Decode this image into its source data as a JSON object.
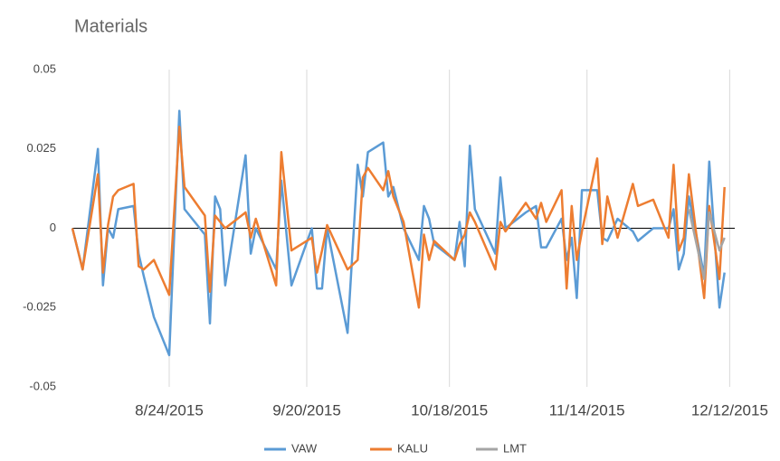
{
  "chart_data": {
    "type": "line",
    "title": "Materials",
    "x": [
      "2015-08-05",
      "2015-08-07",
      "2015-08-10",
      "2015-08-11",
      "2015-08-12",
      "2015-08-13",
      "2015-08-14",
      "2015-08-17",
      "2015-08-18",
      "2015-08-19",
      "2015-08-21",
      "2015-08-24",
      "2015-08-26",
      "2015-08-27",
      "2015-08-31",
      "2015-09-01",
      "2015-09-02",
      "2015-09-03",
      "2015-09-04",
      "2015-09-08",
      "2015-09-09",
      "2015-09-10",
      "2015-09-14",
      "2015-09-15",
      "2015-09-17",
      "2015-09-21",
      "2015-09-22",
      "2015-09-23",
      "2015-09-24",
      "2015-09-28",
      "2015-09-30",
      "2015-10-01",
      "2015-10-02",
      "2015-10-05",
      "2015-10-06",
      "2015-10-07",
      "2015-10-09",
      "2015-10-12",
      "2015-10-13",
      "2015-10-14",
      "2015-10-15",
      "2015-10-19",
      "2015-10-20",
      "2015-10-21",
      "2015-10-22",
      "2015-10-23",
      "2015-10-27",
      "2015-10-28",
      "2015-10-29",
      "2015-11-02",
      "2015-11-04",
      "2015-11-05",
      "2015-11-06",
      "2015-11-09",
      "2015-11-10",
      "2015-11-11",
      "2015-11-12",
      "2015-11-13",
      "2015-11-16",
      "2015-11-17",
      "2015-11-18",
      "2015-11-20",
      "2015-11-23",
      "2015-11-24",
      "2015-11-27",
      "2015-11-30",
      "2015-12-01",
      "2015-12-02",
      "2015-12-03",
      "2015-12-04",
      "2015-12-07",
      "2015-12-08",
      "2015-12-10",
      "2015-12-11"
    ],
    "series": [
      {
        "name": "VAW",
        "color": "#5b9bd5",
        "values": [
          0,
          -0.013,
          0.025,
          -0.018,
          0,
          -0.003,
          0.006,
          0.007,
          -0.008,
          -0.015,
          -0.028,
          -0.04,
          0.037,
          0.006,
          -0.002,
          -0.03,
          0.01,
          0.006,
          -0.018,
          0.023,
          -0.008,
          0,
          -0.013,
          0.015,
          -0.018,
          0,
          -0.019,
          -0.019,
          0,
          -0.033,
          0.02,
          0.01,
          0.024,
          0.027,
          0.01,
          0.013,
          0,
          -0.01,
          0.007,
          0.003,
          -0.005,
          -0.01,
          0.002,
          -0.012,
          0.026,
          0.006,
          -0.008,
          0.016,
          0,
          0.005,
          0.007,
          -0.006,
          -0.006,
          0.003,
          -0.01,
          -0.003,
          -0.022,
          0.012,
          0.012,
          -0.003,
          -0.004,
          0.003,
          -0.001,
          -0.004,
          0,
          0,
          0.006,
          -0.013,
          -0.008,
          0.01,
          -0.015,
          0.021,
          -0.025,
          -0.014
        ]
      },
      {
        "name": "KALU",
        "color": "#ed7d31",
        "values": [
          0,
          -0.013,
          0.017,
          -0.014,
          0.001,
          0.01,
          0.012,
          0.014,
          -0.012,
          -0.013,
          -0.01,
          -0.021,
          0.032,
          0.013,
          0.004,
          -0.02,
          0.004,
          0.002,
          0,
          0.005,
          -0.003,
          0.003,
          -0.018,
          0.024,
          -0.007,
          -0.003,
          -0.014,
          -0.007,
          0.001,
          -0.013,
          -0.01,
          0.016,
          0.019,
          0.012,
          0.018,
          0.01,
          0.002,
          -0.025,
          -0.002,
          -0.01,
          -0.004,
          -0.01,
          -0.005,
          -0.002,
          0.005,
          0.002,
          -0.013,
          0.002,
          -0.001,
          0.008,
          0.003,
          0.008,
          0.002,
          0.012,
          -0.019,
          0.007,
          -0.01,
          -0.001,
          0.022,
          -0.005,
          0.01,
          -0.003,
          0.014,
          0.007,
          0.009,
          -0.003,
          0.02,
          -0.007,
          -0.003,
          0.017,
          -0.022,
          0.007,
          -0.016,
          0.013
        ]
      },
      {
        "name": "LMT",
        "color": "#a5a5a5",
        "values": [
          null,
          null,
          null,
          null,
          null,
          null,
          null,
          null,
          null,
          null,
          null,
          null,
          null,
          null,
          null,
          null,
          null,
          null,
          null,
          null,
          null,
          null,
          null,
          null,
          null,
          null,
          null,
          null,
          null,
          null,
          null,
          null,
          null,
          null,
          null,
          null,
          null,
          null,
          null,
          null,
          null,
          null,
          null,
          null,
          null,
          null,
          null,
          null,
          null,
          null,
          null,
          null,
          null,
          null,
          null,
          null,
          null,
          null,
          null,
          null,
          null,
          null,
          null,
          null,
          null,
          null,
          null,
          null,
          null,
          0.006,
          -0.016,
          0.005,
          -0.007,
          -0.003
        ]
      }
    ],
    "xlim": [
      "2015-08-05",
      "2015-12-13"
    ],
    "xticks": [
      {
        "value": "2015-08-24",
        "label": "8/24/2015"
      },
      {
        "value": "2015-09-20",
        "label": "9/20/2015"
      },
      {
        "value": "2015-10-18",
        "label": "10/18/2015"
      },
      {
        "value": "2015-11-14",
        "label": "11/14/2015"
      },
      {
        "value": "2015-12-12",
        "label": "12/12/2015"
      }
    ],
    "ylim": [
      -0.05,
      0.05
    ],
    "yticks": [
      0.05,
      0.025,
      0,
      -0.025,
      -0.05
    ],
    "grid": true,
    "legend": "bottom"
  }
}
